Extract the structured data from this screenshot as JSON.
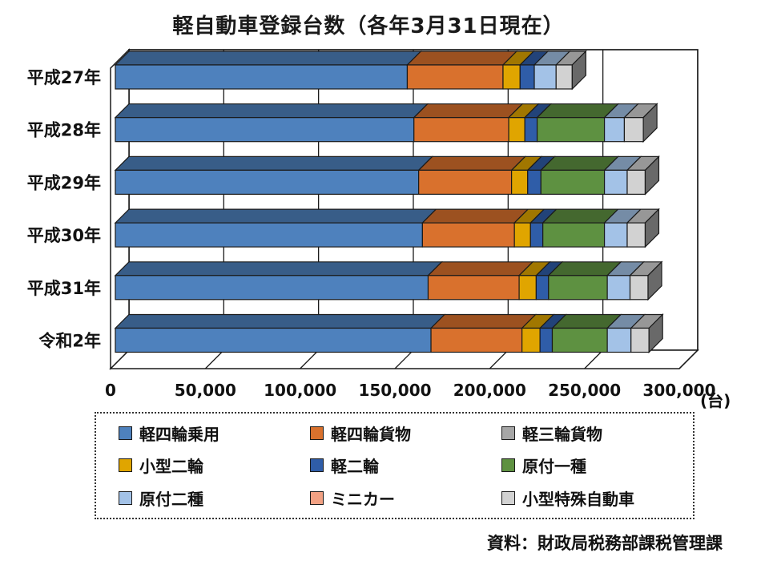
{
  "title": "軽自動車登録台数（各年3月31日現在）",
  "source": "資料：財政局税務部課税管理課",
  "axis_unit": "(台)",
  "chart_data": {
    "type": "bar",
    "orientation": "horizontal-stacked-3d",
    "title": "軽自動車登録台数（各年3月31日現在）",
    "categories": [
      "平成27年",
      "平成28年",
      "平成29年",
      "平成30年",
      "平成31年",
      "令和2年"
    ],
    "series": [
      {
        "name": "軽四輪乗用",
        "color": "#4E81BD",
        "values": [
          154000,
          157500,
          160000,
          162000,
          165000,
          166500
        ]
      },
      {
        "name": "軽四輪貨物",
        "color": "#D9712D",
        "values": [
          50500,
          50000,
          49000,
          48500,
          48000,
          48000
        ]
      },
      {
        "name": "軽三輪貨物",
        "color": "#A6A6A6",
        "values": [
          0,
          0,
          0,
          0,
          0,
          0
        ]
      },
      {
        "name": "小型二輪",
        "color": "#E0A500",
        "values": [
          9000,
          8500,
          8500,
          8500,
          9000,
          9500
        ]
      },
      {
        "name": "軽二輪",
        "color": "#2F5DA8",
        "values": [
          7500,
          6500,
          7000,
          6500,
          6500,
          6500
        ]
      },
      {
        "name": "原付一種",
        "color": "#5E9141",
        "values": [
          0,
          35500,
          33500,
          32500,
          31000,
          29000
        ]
      },
      {
        "name": "原付二種",
        "color": "#A3C2E7",
        "values": [
          11500,
          10500,
          12000,
          12000,
          12000,
          12500
        ]
      },
      {
        "name": "ミニカー",
        "color": "#F2A183",
        "values": [
          0,
          0,
          0,
          0,
          0,
          0
        ]
      },
      {
        "name": "小型特殊自動車",
        "color": "#D2D2D2",
        "values": [
          8500,
          10000,
          9500,
          9500,
          9500,
          9500
        ]
      }
    ],
    "xlabel_ticks": [
      "0",
      "50,000",
      "100,000",
      "150,000",
      "200,000",
      "250,000",
      "300,000"
    ],
    "x_max": 300000,
    "xlabel": "(台)",
    "grid": true,
    "legend_position": "bottom"
  }
}
